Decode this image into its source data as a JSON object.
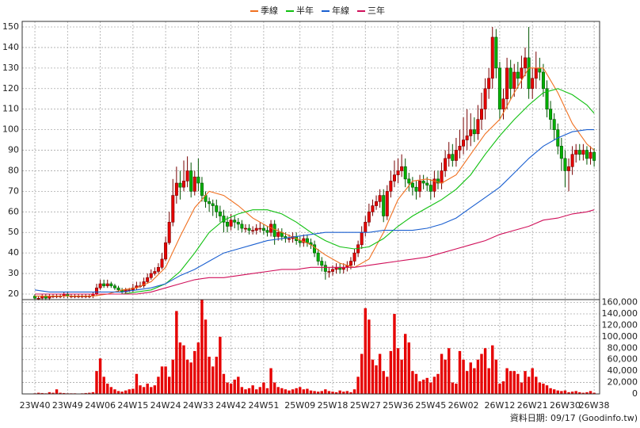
{
  "chart_data": {
    "type": "candlestick",
    "legend": "top",
    "grid": true,
    "footer": "資料日期: 09/17 (Goodinfo.tw)",
    "up_color": "#e60000",
    "down_color": "#00b000",
    "volume_color": "#e60000",
    "xlim": [
      -3.5,
      155.5
    ],
    "xticks": [
      {
        "value": 0,
        "label": "23W40"
      },
      {
        "value": 9,
        "label": "23W49"
      },
      {
        "value": 18,
        "label": "24W06"
      },
      {
        "value": 27,
        "label": "24W15"
      },
      {
        "value": 36,
        "label": "24W24"
      },
      {
        "value": 45,
        "label": "24W33"
      },
      {
        "value": 54,
        "label": "24W42"
      },
      {
        "value": 63,
        "label": "24W51"
      },
      {
        "value": 73,
        "label": "25W09"
      },
      {
        "value": 82,
        "label": "25W18"
      },
      {
        "value": 91,
        "label": "25W27"
      },
      {
        "value": 100,
        "label": "25W36"
      },
      {
        "value": 109,
        "label": "25W45"
      },
      {
        "value": 118,
        "label": "26W02"
      },
      {
        "value": 128,
        "label": "26W12"
      },
      {
        "value": 137,
        "label": "26W21"
      },
      {
        "value": 146,
        "label": "26W30"
      },
      {
        "value": 154,
        "label": "26W38"
      }
    ],
    "ylim": [
      17.3,
      152.7
    ],
    "yticks": [
      20,
      30,
      40,
      50,
      60,
      70,
      80,
      90,
      100,
      110,
      120,
      130,
      140,
      150
    ],
    "volume_ylim": [
      0,
      165000
    ],
    "volume_yticks": [
      0,
      {
        "value": 20000,
        "label": "20,000"
      },
      {
        "value": 40000,
        "label": "40,000"
      },
      {
        "value": 60000,
        "label": "60,000"
      },
      {
        "value": 80000,
        "label": "80,000"
      },
      {
        "value": 100000,
        "label": "100,000"
      },
      {
        "value": 120000,
        "label": "120,000"
      },
      {
        "value": 140000,
        "label": "140,000"
      },
      {
        "value": 160000,
        "label": "160,000"
      }
    ],
    "open": [
      19,
      18,
      18,
      19,
      18,
      19,
      19,
      19,
      19,
      20,
      19,
      19,
      19,
      19,
      19,
      19,
      19,
      20,
      23,
      25,
      24,
      25,
      24,
      23,
      22,
      21,
      22,
      22,
      23,
      24,
      24,
      26,
      28,
      30,
      31,
      33,
      37,
      45,
      55,
      68,
      74,
      72,
      75,
      80,
      70,
      77,
      74,
      68,
      65,
      64,
      63,
      60,
      58,
      55,
      53,
      56,
      55,
      54,
      52,
      52,
      51,
      51,
      52,
      52,
      51,
      50,
      54,
      48,
      50,
      48,
      47,
      47,
      48,
      46,
      45,
      47,
      45,
      44,
      40,
      36,
      34,
      31,
      31,
      32,
      33,
      32,
      33,
      34,
      36,
      40,
      44,
      50,
      55,
      60,
      63,
      65,
      68,
      58,
      70,
      75,
      78,
      80,
      82,
      76,
      74,
      72,
      70,
      75,
      74,
      73,
      70,
      76,
      74,
      80,
      86,
      88,
      85,
      90,
      92,
      95,
      97,
      100,
      98,
      105,
      110,
      120,
      125,
      145,
      130,
      110,
      115,
      130,
      120,
      128,
      125,
      130,
      135,
      120,
      125,
      130,
      128,
      120,
      110,
      105,
      100,
      92,
      86,
      80,
      82,
      88,
      90,
      88,
      90,
      86,
      89
    ],
    "high": [
      20,
      19,
      20,
      20,
      20,
      20,
      20,
      20,
      21,
      21,
      20,
      20,
      20,
      20,
      20,
      20,
      21,
      25,
      27,
      27,
      27,
      26,
      25,
      24,
      23,
      23,
      23,
      25,
      26,
      26,
      28,
      30,
      32,
      33,
      35,
      40,
      48,
      60,
      76,
      82,
      80,
      85,
      87,
      84,
      80,
      86,
      77,
      70,
      67,
      66,
      66,
      63,
      61,
      58,
      59,
      58,
      57,
      56,
      54,
      54,
      53,
      54,
      55,
      54,
      53,
      56,
      56,
      52,
      52,
      50,
      49,
      50,
      50,
      48,
      49,
      49,
      47,
      46,
      42,
      38,
      36,
      33,
      34,
      35,
      35,
      35,
      36,
      38,
      42,
      46,
      53,
      58,
      64,
      66,
      68,
      71,
      71,
      73,
      80,
      85,
      86,
      88,
      86,
      79,
      77,
      75,
      78,
      78,
      77,
      76,
      80,
      80,
      84,
      90,
      94,
      93,
      96,
      100,
      106,
      110,
      108,
      106,
      112,
      118,
      125,
      130,
      150,
      149,
      133,
      120,
      135,
      134,
      132,
      133,
      136,
      140,
      150,
      130,
      138,
      135,
      132,
      124,
      114,
      108,
      103,
      96,
      90,
      86,
      92,
      93,
      93,
      93,
      92,
      92,
      91
    ],
    "low": [
      17,
      17,
      17,
      17,
      17,
      18,
      18,
      18,
      18,
      18,
      18,
      18,
      18,
      18,
      18,
      18,
      18,
      19,
      22,
      23,
      23,
      23,
      22,
      21,
      20,
      20,
      21,
      21,
      22,
      23,
      23,
      25,
      27,
      29,
      30,
      32,
      36,
      44,
      53,
      64,
      66,
      70,
      72,
      67,
      68,
      70,
      65,
      62,
      60,
      58,
      57,
      55,
      50,
      50,
      51,
      52,
      51,
      50,
      50,
      49,
      49,
      49,
      50,
      49,
      48,
      48,
      44,
      46,
      46,
      45,
      45,
      45,
      44,
      43,
      43,
      43,
      42,
      38,
      34,
      31,
      27,
      28,
      29,
      30,
      30,
      30,
      31,
      32,
      34,
      38,
      42,
      48,
      53,
      58,
      61,
      62,
      55,
      56,
      67,
      72,
      74,
      77,
      72,
      70,
      68,
      66,
      67,
      71,
      70,
      66,
      67,
      71,
      71,
      77,
      82,
      82,
      82,
      86,
      88,
      90,
      92,
      94,
      95,
      100,
      105,
      115,
      120,
      125,
      105,
      105,
      110,
      115,
      116,
      120,
      120,
      126,
      115,
      115,
      120,
      124,
      116,
      106,
      100,
      95,
      88,
      80,
      72,
      70,
      78,
      84,
      85,
      85,
      83,
      83,
      82
    ],
    "close": [
      18,
      18,
      19,
      18,
      19,
      19,
      19,
      19,
      20,
      19,
      19,
      19,
      19,
      19,
      19,
      19,
      20,
      23,
      25,
      24,
      25,
      24,
      23,
      22,
      21,
      22,
      22,
      23,
      24,
      24,
      26,
      28,
      30,
      31,
      33,
      37,
      45,
      55,
      68,
      74,
      72,
      75,
      80,
      70,
      77,
      74,
      68,
      65,
      64,
      63,
      60,
      58,
      55,
      53,
      56,
      55,
      54,
      52,
      52,
      51,
      51,
      52,
      52,
      51,
      50,
      54,
      48,
      50,
      48,
      47,
      47,
      48,
      46,
      45,
      47,
      45,
      44,
      40,
      36,
      34,
      31,
      31,
      32,
      33,
      32,
      33,
      34,
      36,
      40,
      44,
      50,
      55,
      60,
      63,
      65,
      68,
      58,
      70,
      75,
      78,
      80,
      82,
      76,
      74,
      72,
      70,
      75,
      74,
      73,
      70,
      76,
      74,
      80,
      86,
      88,
      85,
      90,
      92,
      95,
      97,
      100,
      98,
      105,
      110,
      120,
      125,
      145,
      130,
      110,
      115,
      130,
      120,
      128,
      125,
      130,
      135,
      120,
      125,
      130,
      128,
      120,
      110,
      105,
      100,
      92,
      86,
      80,
      82,
      88,
      90,
      88,
      90,
      86,
      89,
      85
    ],
    "volume": [
      1000,
      2000,
      1500,
      1000,
      3000,
      2000,
      8000,
      2000,
      1500,
      1000,
      1000,
      1000,
      500,
      1000,
      1500,
      2000,
      3000,
      40000,
      62000,
      30000,
      18000,
      12000,
      8000,
      5000,
      4000,
      6000,
      8000,
      9000,
      35000,
      15000,
      12000,
      18000,
      12000,
      15000,
      30000,
      48000,
      48000,
      30000,
      60000,
      145000,
      90000,
      85000,
      60000,
      55000,
      75000,
      90000,
      165000,
      130000,
      65000,
      48000,
      65000,
      100000,
      35000,
      20000,
      18000,
      25000,
      30000,
      12000,
      8000,
      10000,
      15000,
      8000,
      12000,
      20000,
      10000,
      45000,
      20000,
      12000,
      10000,
      8000,
      6000,
      8000,
      10000,
      12000,
      8000,
      9000,
      6000,
      5000,
      4000,
      5000,
      8000,
      5000,
      4000,
      3000,
      6000,
      4000,
      5000,
      3000,
      8000,
      30000,
      70000,
      150000,
      130000,
      60000,
      50000,
      70000,
      40000,
      30000,
      75000,
      140000,
      80000,
      60000,
      105000,
      90000,
      40000,
      35000,
      22000,
      25000,
      28000,
      20000,
      30000,
      35000,
      70000,
      60000,
      80000,
      20000,
      18000,
      75000,
      60000,
      40000,
      55000,
      45000,
      60000,
      70000,
      80000,
      45000,
      85000,
      60000,
      18000,
      22000,
      45000,
      40000,
      40000,
      35000,
      20000,
      40000,
      30000,
      45000,
      30000,
      20000,
      18000,
      15000,
      10000,
      8000,
      6000,
      5000,
      6000,
      3000,
      4000,
      5000,
      3000,
      2000,
      3000,
      5000,
      2000
    ],
    "series": [
      {
        "name": "季線",
        "color": "#f07020",
        "x": [
          0,
          4,
          8,
          12,
          16,
          20,
          24,
          28,
          32,
          36,
          40,
          44,
          48,
          52,
          56,
          60,
          64,
          68,
          72,
          76,
          80,
          84,
          88,
          92,
          96,
          100,
          104,
          108,
          112,
          116,
          120,
          124,
          128,
          132,
          136,
          140,
          144,
          148,
          152,
          154
        ],
        "values": [
          19,
          19,
          19,
          19,
          19,
          20,
          22,
          23,
          26,
          33,
          48,
          62,
          70,
          68,
          63,
          57,
          53,
          50,
          47,
          44,
          39,
          35,
          33,
          37,
          50,
          66,
          75,
          76,
          74,
          78,
          88,
          98,
          105,
          118,
          130,
          130,
          118,
          103,
          93,
          90
        ]
      },
      {
        "name": "半年",
        "color": "#10c010",
        "x": [
          0,
          4,
          8,
          12,
          16,
          20,
          24,
          28,
          32,
          36,
          40,
          44,
          48,
          52,
          56,
          60,
          64,
          68,
          72,
          76,
          80,
          84,
          88,
          92,
          96,
          100,
          104,
          108,
          112,
          116,
          120,
          124,
          128,
          132,
          136,
          140,
          144,
          148,
          152,
          154
        ],
        "values": [
          20,
          20,
          20,
          20,
          20,
          20,
          20,
          21,
          22,
          25,
          31,
          40,
          50,
          56,
          59,
          61,
          61,
          59,
          55,
          50,
          46,
          43,
          42,
          43,
          47,
          53,
          58,
          62,
          66,
          71,
          78,
          88,
          97,
          105,
          112,
          118,
          120,
          117,
          112,
          108
        ]
      },
      {
        "name": "年線",
        "color": "#1a5fd0",
        "x": [
          0,
          4,
          8,
          12,
          16,
          20,
          24,
          28,
          32,
          36,
          40,
          44,
          48,
          52,
          56,
          60,
          64,
          68,
          72,
          76,
          80,
          84,
          88,
          92,
          96,
          100,
          104,
          108,
          112,
          116,
          120,
          124,
          128,
          132,
          136,
          140,
          144,
          148,
          152,
          154
        ],
        "values": [
          22,
          21,
          21,
          21,
          21,
          21,
          21,
          22,
          23,
          25,
          29,
          32,
          36,
          40,
          42,
          44,
          46,
          47,
          48,
          49,
          50,
          50,
          50,
          50,
          51,
          51,
          51,
          52,
          54,
          57,
          62,
          67,
          72,
          79,
          86,
          92,
          96,
          99,
          100,
          100
        ]
      },
      {
        "name": "三年",
        "color": "#d0105a",
        "x": [
          0,
          4,
          8,
          12,
          16,
          20,
          24,
          28,
          32,
          36,
          40,
          44,
          48,
          52,
          56,
          60,
          64,
          68,
          72,
          76,
          80,
          84,
          88,
          92,
          96,
          100,
          104,
          108,
          112,
          116,
          120,
          124,
          128,
          132,
          136,
          140,
          144,
          148,
          152,
          154
        ],
        "values": [
          20,
          20,
          20,
          20,
          20,
          20,
          20,
          20,
          21,
          23,
          25,
          27,
          28,
          28,
          29,
          30,
          31,
          32,
          32,
          33,
          33,
          33,
          33,
          34,
          35,
          36,
          37,
          38,
          40,
          42,
          44,
          46,
          49,
          51,
          53,
          56,
          57,
          59,
          60,
          61
        ]
      }
    ]
  }
}
